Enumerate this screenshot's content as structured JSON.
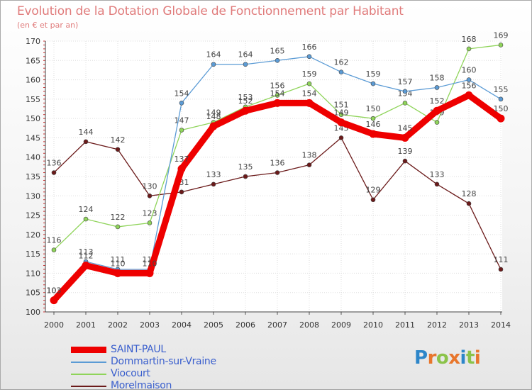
{
  "title": "Evolution de la Dotation Globale de Fonctionnement par Habitant",
  "subtitle": "(en € et par an)",
  "brand": {
    "text": "Proxiti"
  },
  "chart_data": {
    "type": "line",
    "title": "Evolution de la Dotation Globale de Fonctionnement par Habitant",
    "subtitle": "(en € et par an)",
    "xlabel": "",
    "ylabel": "",
    "x": [
      "2000",
      "2001",
      "2002",
      "2003",
      "2004",
      "2005",
      "2006",
      "2007",
      "2008",
      "2009",
      "2010",
      "2011",
      "2012",
      "2013",
      "2014"
    ],
    "ylim": [
      100,
      170
    ],
    "yticks": [
      100,
      105,
      110,
      115,
      120,
      125,
      130,
      135,
      140,
      145,
      150,
      155,
      160,
      165,
      170
    ],
    "grid": true,
    "legend": "bottom-left",
    "series": [
      {
        "name": "Morelmaison",
        "color": "#6b1a1a",
        "values": [
          136,
          144,
          142,
          130,
          131,
          133,
          135,
          136,
          138,
          145,
          129,
          139,
          133,
          128,
          111
        ]
      },
      {
        "name": "Viocourt",
        "color": "#8fd45a",
        "values": [
          116,
          124,
          122,
          123,
          147,
          149,
          153,
          156,
          159,
          151,
          150,
          154,
          149,
          168,
          169
        ]
      },
      {
        "name": "Dommartin-sur-Vraine",
        "color": "#5b9bd5",
        "values": [
          103,
          113,
          111,
          111,
          154,
          164,
          164,
          165,
          166,
          162,
          159,
          157,
          158,
          160,
          155
        ]
      },
      {
        "name": "SAINT-PAUL",
        "color": "#ee0000",
        "values": [
          103,
          112,
          110,
          110,
          137,
          148,
          152,
          154,
          154,
          149,
          146,
          145,
          152,
          156,
          150
        ]
      }
    ]
  },
  "legend": [
    {
      "label": "SAINT-PAUL",
      "color": "#ee0000"
    },
    {
      "label": "Dommartin-sur-Vraine",
      "color": "#5b9bd5"
    },
    {
      "label": "Viocourt",
      "color": "#8fd45a"
    },
    {
      "label": "Morelmaison",
      "color": "#6b1a1a"
    }
  ]
}
